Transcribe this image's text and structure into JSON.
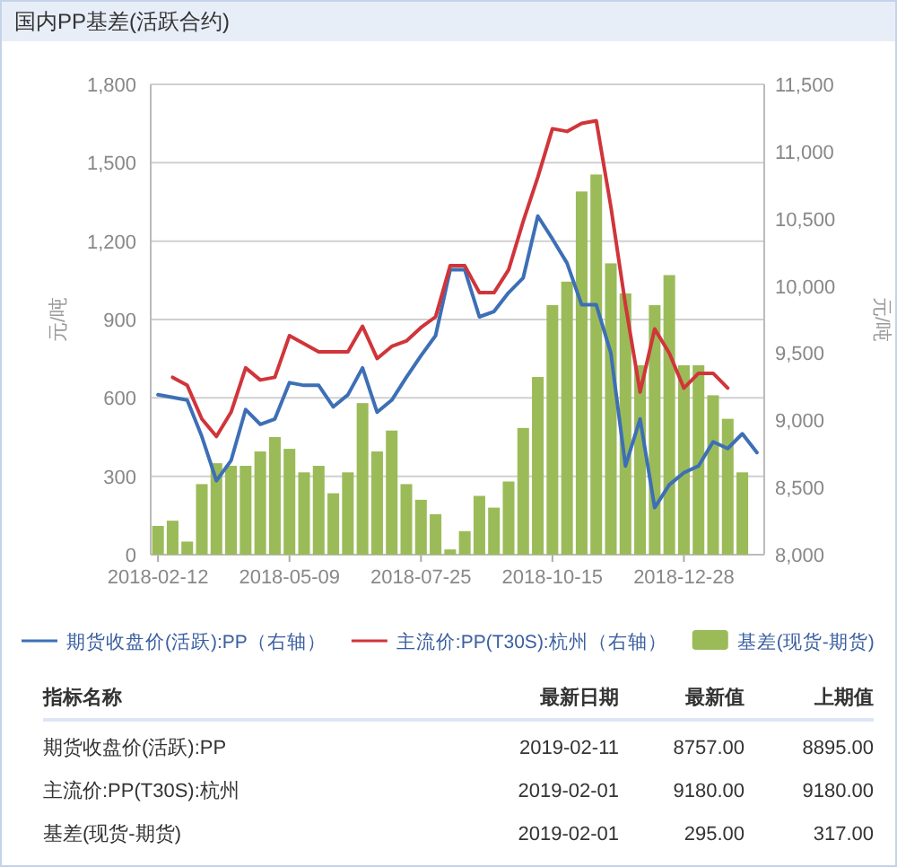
{
  "chart_data": {
    "type": "bar",
    "title": "国内PP基差(活跃合约)",
    "categories": [
      "2018-02-12",
      null,
      null,
      null,
      null,
      null,
      null,
      null,
      null,
      "2018-05-09",
      null,
      null,
      null,
      null,
      null,
      null,
      null,
      null,
      "2018-07-25",
      null,
      null,
      null,
      null,
      null,
      null,
      null,
      null,
      "2018-10-15",
      null,
      null,
      null,
      null,
      null,
      null,
      null,
      null,
      "2018-12-28",
      null,
      null,
      null,
      null,
      null
    ],
    "series": [
      {
        "name": "期货收盘价(活跃):PP（右轴）",
        "type": "line",
        "axis": "y2",
        "color": "#3d6fb6",
        "values": [
          9190,
          9170,
          9150,
          8880,
          8550,
          8700,
          9080,
          8970,
          9010,
          9280,
          9260,
          9260,
          9100,
          9190,
          9390,
          9060,
          9150,
          9320,
          9480,
          9630,
          10120,
          10120,
          9770,
          9810,
          9950,
          10060,
          10520,
          10350,
          10170,
          9860,
          9860,
          9500,
          8660,
          9010,
          8350,
          8520,
          8610,
          8660,
          8840,
          8790,
          8900,
          8760
        ]
      },
      {
        "name": "主流价:PP(T30S):杭州（右轴）",
        "type": "line",
        "axis": "y2",
        "color": "#d0353a",
        "values": [
          null,
          9320,
          9260,
          9010,
          8880,
          9060,
          9390,
          9300,
          9320,
          9630,
          9570,
          9510,
          9510,
          9510,
          9700,
          9460,
          9550,
          9590,
          9690,
          9770,
          10150,
          10150,
          9950,
          9950,
          10120,
          10480,
          10810,
          11170,
          11150,
          11210,
          11230,
          10590,
          9860,
          9210,
          9680,
          9500,
          9240,
          9350,
          9350,
          9240,
          null,
          null
        ]
      },
      {
        "name": "基差(现货-期货)",
        "color": "#9bbb59",
        "values": [
          110,
          130,
          50,
          270,
          350,
          340,
          340,
          395,
          450,
          405,
          315,
          340,
          235,
          315,
          580,
          395,
          475,
          270,
          210,
          155,
          20,
          90,
          225,
          180,
          280,
          485,
          680,
          955,
          1045,
          1390,
          1455,
          1115,
          1000,
          725,
          955,
          1070,
          725,
          725,
          610,
          520,
          315,
          null
        ]
      }
    ],
    "ylabel": "元/吨",
    "y2label": "元/吨",
    "ylim": [
      0,
      1800
    ],
    "yticks": [
      0,
      300,
      600,
      900,
      {
        "value": 1200,
        "label": "1,200"
      },
      {
        "value": 1500,
        "label": "1,500"
      },
      {
        "value": 1800,
        "label": "1,800"
      }
    ],
    "y2lim": [
      8000,
      11500
    ],
    "y2ticks": [
      {
        "value": 8000,
        "label": "8,000"
      },
      {
        "value": 8500,
        "label": "8,500"
      },
      {
        "value": 9000,
        "label": "9,000"
      },
      {
        "value": 9500,
        "label": "9,500"
      },
      {
        "value": 10000,
        "label": "10,000"
      },
      {
        "value": 10500,
        "label": "10,500"
      },
      {
        "value": 11000,
        "label": "11,000"
      },
      {
        "value": 11500,
        "label": "11,500"
      }
    ],
    "grid": "y",
    "legend": "bottom",
    "annotations": [
      "指标名称",
      "最新日期",
      "最新值",
      "上期值",
      "期货收盘价(活跃):PP",
      "2019-02-11",
      "8757.00",
      "8895.00",
      "主流价:PP(T30S):杭州",
      "2019-02-01",
      "9180.00",
      "9180.00",
      "基差(现货-期货)",
      "2019-02-01",
      "295.00",
      "317.00"
    ]
  }
}
